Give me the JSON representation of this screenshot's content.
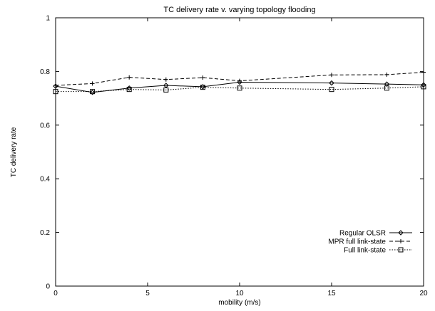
{
  "chart_data": {
    "type": "line",
    "title": "TC delivery rate v. varying topology flooding",
    "xlabel": "mobility (m/s)",
    "ylabel": "TC delivery rate",
    "xlim": [
      0,
      20
    ],
    "ylim": [
      0,
      1
    ],
    "xticks": [
      0,
      5,
      10,
      15,
      20
    ],
    "yticks": [
      0,
      0.2,
      0.4,
      0.6,
      0.8,
      1
    ],
    "ytick_labels": [
      "0",
      "0.2",
      "0.4",
      "0.6",
      "0.8",
      "1"
    ],
    "grid": false,
    "legend_position": "bottom-right",
    "x": [
      0,
      2,
      4,
      6,
      8,
      10,
      15,
      18,
      20
    ],
    "series": [
      {
        "name": "Regular OLSR",
        "marker": "diamond",
        "dash": "solid",
        "values": [
          0.745,
          0.722,
          0.738,
          0.748,
          0.743,
          0.76,
          0.757,
          0.753,
          0.75
        ]
      },
      {
        "name": "MPR full link-state",
        "marker": "plus",
        "dash": "dashed",
        "values": [
          0.748,
          0.755,
          0.778,
          0.77,
          0.777,
          0.765,
          0.787,
          0.788,
          0.797
        ]
      },
      {
        "name": "Full link-state",
        "marker": "square",
        "dash": "dotted",
        "values": [
          0.725,
          0.725,
          0.733,
          0.731,
          0.741,
          0.738,
          0.733,
          0.738,
          0.743
        ]
      }
    ]
  }
}
